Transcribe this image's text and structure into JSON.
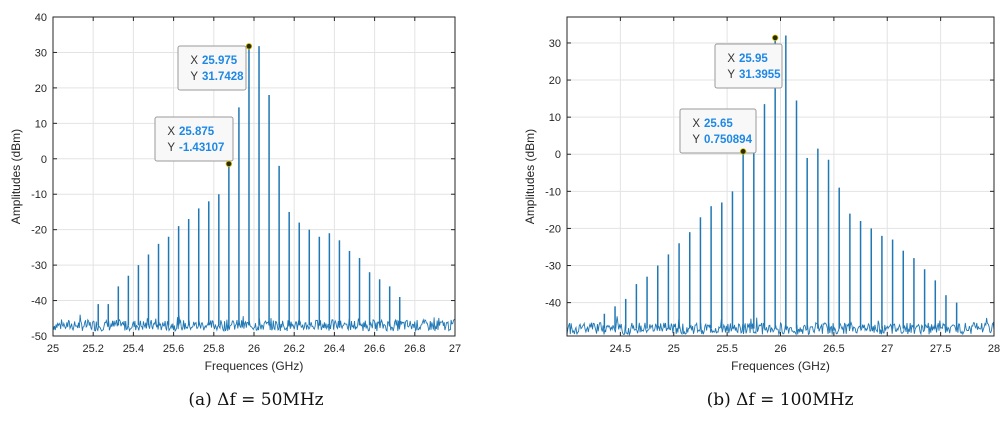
{
  "colors": {
    "line": "#1f77b4",
    "grid": "#e3e3e3",
    "axis": "#262626",
    "datatip_value": "#1e88e5",
    "datatip_key": "#333333",
    "marker": "#2b2b00"
  },
  "chart_data": [
    {
      "type": "line",
      "caption": "(a) Δf = 50MHz",
      "xlabel": "Frequences (GHz)",
      "ylabel": "Amplitudes (dBm)",
      "xlim": [
        25,
        27
      ],
      "ylim": [
        -50,
        40
      ],
      "xticks": [
        25,
        25.2,
        25.4,
        25.6,
        25.8,
        26,
        26.2,
        26.4,
        26.6,
        26.8,
        27
      ],
      "xtick_labels": [
        "25",
        "25.2",
        "25.4",
        "25.6",
        "25.8",
        "26",
        "26.2",
        "26.4",
        "26.6",
        "26.8",
        "27"
      ],
      "yticks": [
        -50,
        -40,
        -30,
        -20,
        -10,
        0,
        10,
        20,
        30,
        40
      ],
      "ytick_labels": [
        "-50",
        "-40",
        "-30",
        "-20",
        "-10",
        "0",
        "10",
        "20",
        "30",
        "40"
      ],
      "grid": true,
      "noise_floor": -47,
      "spectral_lines": {
        "x": [
          25.225,
          25.275,
          25.325,
          25.375,
          25.425,
          25.475,
          25.525,
          25.575,
          25.625,
          25.675,
          25.725,
          25.775,
          25.825,
          25.875,
          25.925,
          25.975,
          26.025,
          26.075,
          26.125,
          26.175,
          26.225,
          26.275,
          26.325,
          26.375,
          26.425,
          26.475,
          26.525,
          26.575,
          26.625,
          26.675,
          26.725
        ],
        "y": [
          -41,
          -41,
          -36,
          -33,
          -30,
          -27,
          -24,
          -22,
          -19,
          -17,
          -14,
          -12,
          -10,
          -1.43107,
          14.5,
          31.7428,
          31.8,
          18,
          -2,
          -15,
          -18,
          -20,
          -22,
          -21,
          -23,
          -26,
          -28,
          -32,
          -34,
          -36,
          -39
        ]
      },
      "datatips": [
        {
          "x_label": "X",
          "x_value": "25.975",
          "y_label": "Y",
          "y_value": "31.7428",
          "x": 25.975,
          "y": 31.7428
        },
        {
          "x_label": "X",
          "x_value": "25.875",
          "y_label": "Y",
          "y_value": "-1.43107",
          "x": 25.875,
          "y": -1.43107
        }
      ]
    },
    {
      "type": "line",
      "caption": "(b) Δf = 100MHz",
      "xlabel": "Frequences (GHz)",
      "ylabel": "Amplitudes (dBm)",
      "xlim": [
        24,
        28
      ],
      "ylim": [
        -49,
        37
      ],
      "xticks": [
        24.5,
        25,
        25.5,
        26,
        26.5,
        27,
        27.5,
        28
      ],
      "xtick_labels": [
        "24.5",
        "25",
        "25.5",
        "26",
        "26.5",
        "27",
        "27.5",
        "28"
      ],
      "yticks": [
        -40,
        -30,
        -20,
        -10,
        0,
        10,
        20,
        30
      ],
      "ytick_labels": [
        "-40",
        "-30",
        "-20",
        "-10",
        "0",
        "10",
        "20",
        "30"
      ],
      "grid": true,
      "noise_floor": -47,
      "spectral_lines": {
        "x": [
          24.35,
          24.45,
          24.55,
          24.65,
          24.75,
          24.85,
          24.95,
          25.05,
          25.15,
          25.25,
          25.35,
          25.45,
          25.55,
          25.65,
          25.75,
          25.85,
          25.95,
          26.05,
          26.15,
          26.25,
          26.35,
          26.45,
          26.55,
          26.65,
          26.75,
          26.85,
          26.95,
          27.05,
          27.15,
          27.25,
          27.35,
          27.45,
          27.55,
          27.65
        ],
        "y": [
          -43,
          -41,
          -39,
          -35,
          -33,
          -30,
          -27,
          -24,
          -21,
          -17,
          -14,
          -13,
          -10,
          0.750894,
          4.5,
          13.5,
          31.3955,
          32,
          14.5,
          -1,
          1.5,
          -1.5,
          -9,
          -16,
          -18,
          -20,
          -22,
          -23,
          -26,
          -28,
          -31,
          -34,
          -38,
          -40
        ]
      },
      "datatips": [
        {
          "x_label": "X",
          "x_value": "25.95",
          "y_label": "Y",
          "y_value": "31.3955",
          "x": 25.95,
          "y": 31.3955
        },
        {
          "x_label": "X",
          "x_value": "25.65",
          "y_label": "Y",
          "y_value": "0.750894",
          "x": 25.65,
          "y": 0.750894
        }
      ]
    }
  ]
}
